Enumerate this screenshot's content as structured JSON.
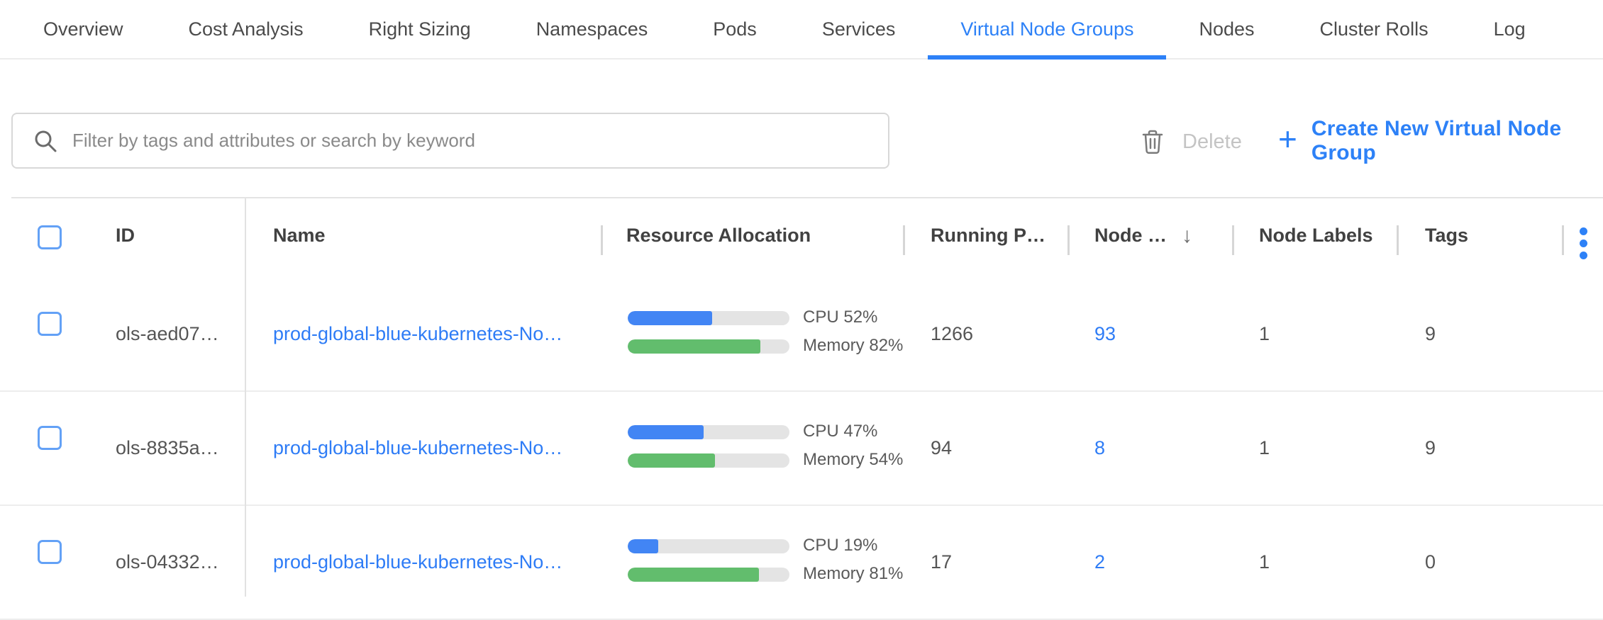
{
  "tabs": {
    "items": [
      {
        "label": "Overview",
        "active": false
      },
      {
        "label": "Cost Analysis",
        "active": false
      },
      {
        "label": "Right Sizing",
        "active": false
      },
      {
        "label": "Namespaces",
        "active": false
      },
      {
        "label": "Pods",
        "active": false
      },
      {
        "label": "Services",
        "active": false
      },
      {
        "label": "Virtual Node Groups",
        "active": true
      },
      {
        "label": "Nodes",
        "active": false
      },
      {
        "label": "Cluster Rolls",
        "active": false
      },
      {
        "label": "Log",
        "active": false
      }
    ]
  },
  "toolbar": {
    "filter_placeholder": "Filter by tags and attributes or search by keyword",
    "delete_label": "Delete",
    "create_plus": "+",
    "create_label": "Create New Virtual Node Group"
  },
  "table": {
    "columns": {
      "id": "ID",
      "name": "Name",
      "resource": "Resource Allocation",
      "running": "Running P…",
      "nodes": "Node …",
      "sort_arrow": "↓",
      "node_labels": "Node Labels",
      "tags": "Tags"
    },
    "rows": [
      {
        "checked": false,
        "id": "ols-aed07…",
        "name": "prod-global-blue-kubernetes-No…",
        "cpu_pct": 52,
        "memory_pct": 82,
        "cpu_label": "CPU 52%",
        "memory_label": "Memory 82%",
        "running_pods": "1266",
        "nodes": "93",
        "node_labels": "1",
        "tags": "9"
      },
      {
        "checked": false,
        "id": "ols-8835a…",
        "name": "prod-global-blue-kubernetes-No…",
        "cpu_pct": 47,
        "memory_pct": 54,
        "cpu_label": "CPU 47%",
        "memory_label": "Memory 54%",
        "running_pods": "94",
        "nodes": "8",
        "node_labels": "1",
        "tags": "9"
      },
      {
        "checked": false,
        "id": "ols-04332…",
        "name": "prod-global-blue-kubernetes-No…",
        "cpu_pct": 19,
        "memory_pct": 81,
        "cpu_label": "CPU 19%",
        "memory_label": "Memory 81%",
        "running_pods": "17",
        "nodes": "2",
        "node_labels": "1",
        "tags": "0"
      }
    ]
  },
  "colors": {
    "accent_blue": "#2d81f7",
    "link_blue": "#2e7cf6",
    "cpu_bar": "#4285f4",
    "memory_bar": "#62bd6d",
    "bar_track": "#e4e4e4",
    "checkbox_border": "#63a1f6"
  }
}
